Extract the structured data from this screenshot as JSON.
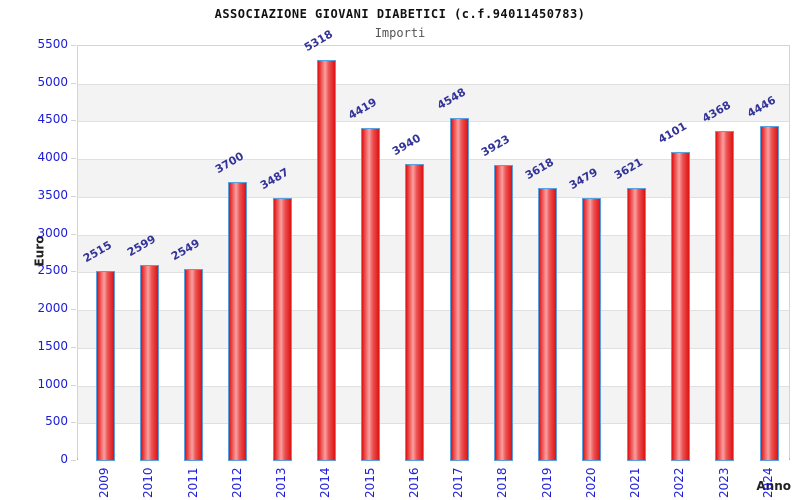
{
  "header": {
    "title": "ASSOCIAZIONE GIOVANI DIABETICI (c.f.94011450783)",
    "subtitle": "Importi"
  },
  "chart_data": {
    "type": "bar",
    "title": "ASSOCIAZIONE GIOVANI DIABETICI (c.f.94011450783)",
    "subtitle": "Importi",
    "xlabel": "Anno",
    "ylabel": "Euro",
    "categories": [
      "2009",
      "2010",
      "2011",
      "2012",
      "2013",
      "2014",
      "2015",
      "2016",
      "2017",
      "2018",
      "2019",
      "2020",
      "2021",
      "2022",
      "2023",
      "2024"
    ],
    "values": [
      2515,
      2599,
      2549,
      3700,
      3487,
      5318,
      4419,
      3940,
      4548,
      3923,
      3618,
      3479,
      3621,
      4101,
      4368,
      4446
    ],
    "ylim": [
      0,
      5500
    ],
    "ytick_step": 500,
    "grid": "horizontal gridlines with alternating white/gray bands",
    "legend": "none",
    "value_label_rotation_deg": -30,
    "x_tick_rotation_deg": -90
  },
  "colors": {
    "bar_edge_red": "#dc1212",
    "bar_mid_red": "#ee5555",
    "bar_light_red": "#f9a0a0",
    "bar_border_blue": "#58a0e0",
    "value_label_navy": "#333399",
    "axis_tick_blue": "#1c1cd6",
    "band_gray": "#f3f3f3",
    "gridline_gray": "#e0e0e0",
    "plot_border_gray": "#d4d4d4",
    "axis_line_gray": "#999999",
    "title_black": "#111111",
    "subtitle_gray": "#555555"
  }
}
